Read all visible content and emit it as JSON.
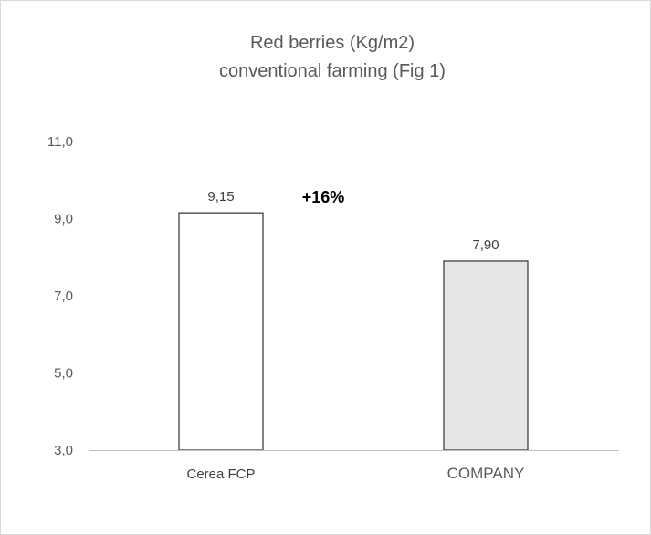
{
  "chart_data": {
    "type": "bar",
    "title_line1": "Red berries (Kg/m2)",
    "title_line2": "conventional farming (Fig 1)",
    "categories": [
      "Cerea FCP",
      "COMPANY"
    ],
    "values": [
      9.15,
      7.9
    ],
    "value_labels": [
      "9,15",
      "7,90"
    ],
    "bar_colors": [
      "#ffffff",
      "#e7e6e6"
    ],
    "bar_stroke": "#404040",
    "ylim": [
      3.0,
      11.0
    ],
    "yticks": [
      3.0,
      5.0,
      7.0,
      9.0,
      11.0
    ],
    "ytick_labels": [
      "3,0",
      "5,0",
      "7,0",
      "9,0",
      "11,0"
    ],
    "annotation": "+16%",
    "grid": false,
    "legend": "none"
  }
}
